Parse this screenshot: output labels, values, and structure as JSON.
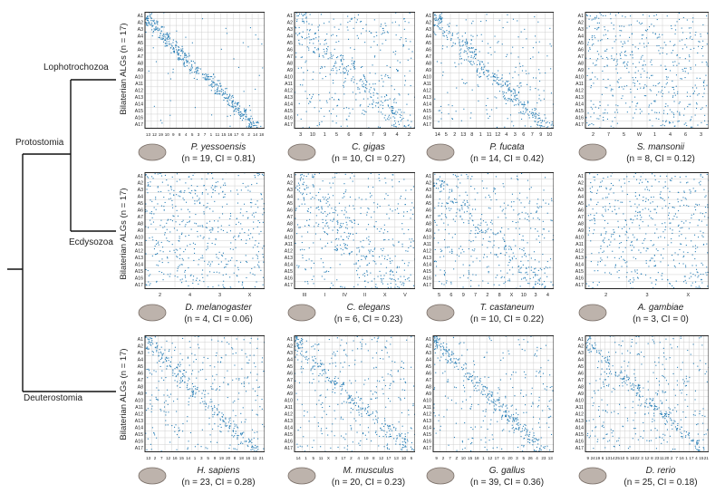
{
  "figure": {
    "clade_labels": {
      "lophotrochozoa": "Lophotrochozoa",
      "protostomia": "Protostomia",
      "ecdysozoa": "Ecdysozoa",
      "deuterostomia": "Deuterostomia"
    },
    "row_axis_label": "Bilaterian ALGs (n = 17)",
    "alg_labels": [
      "A1",
      "A2",
      "A3",
      "A4",
      "A5",
      "A6",
      "A7",
      "A8",
      "A9",
      "A10",
      "A11",
      "A12",
      "A13",
      "A14",
      "A15",
      "A16",
      "A17"
    ],
    "colors": {
      "dot": "#2a7fb6",
      "box": "#222222",
      "grid": "#d0d0d0",
      "silhouette": "#bdb3ac"
    },
    "panels": [
      {
        "species": "P. yessoensis",
        "stat": "(n = 19, CI = 0.81)",
        "icon": "scallop-icon",
        "clade": "Lophotrochozoa",
        "chromosome_ticks": [
          "13",
          "12",
          "19",
          "10",
          "9",
          "8",
          "4",
          "5",
          "3",
          "7",
          "1",
          "11",
          "15",
          "16",
          "17",
          "6",
          "2",
          "14",
          "18"
        ]
      },
      {
        "species": "C. gigas",
        "stat": "(n = 10, CI = 0.27)",
        "icon": "oyster-icon",
        "clade": "Lophotrochozoa",
        "chromosome_ticks": [
          "3",
          "10",
          "1",
          "5",
          "6",
          "8",
          "7",
          "9",
          "4",
          "2"
        ]
      },
      {
        "species": "P. fucata",
        "stat": "(n = 14, CI = 0.42)",
        "icon": "pearl-oyster-icon",
        "clade": "Lophotrochozoa",
        "chromosome_ticks": [
          "14",
          "5",
          "2",
          "13",
          "8",
          "1",
          "11",
          "12",
          "4",
          "3",
          "6",
          "7",
          "9",
          "10"
        ]
      },
      {
        "species": "S. mansonii",
        "stat": "(n = 8, CI = 0.12)",
        "icon": "flatworm-icon",
        "clade": "Lophotrochozoa",
        "chromosome_ticks": [
          "2",
          "7",
          "5",
          "W",
          "1",
          "4",
          "6",
          "3"
        ]
      },
      {
        "species": "D. melanogaster",
        "stat": "(n = 4, CI = 0.06)",
        "icon": "fly-icon",
        "clade": "Ecdysozoa",
        "chromosome_ticks": [
          "2",
          "4",
          "3",
          "X"
        ]
      },
      {
        "species": "C. elegans",
        "stat": "(n = 6, CI = 0.23)",
        "icon": "nematode-icon",
        "clade": "Ecdysozoa",
        "chromosome_ticks": [
          "III",
          "I",
          "IV",
          "II",
          "X",
          "V"
        ]
      },
      {
        "species": "T. castaneum",
        "stat": "(n = 10, CI = 0.22)",
        "icon": "beetle-icon",
        "clade": "Ecdysozoa",
        "chromosome_ticks": [
          "5",
          "6",
          "9",
          "7",
          "2",
          "8",
          "X",
          "10",
          "3",
          "4"
        ]
      },
      {
        "species": "A. gambiae",
        "stat": "(n = 3, CI = 0)",
        "icon": "mosquito-icon",
        "clade": "Ecdysozoa",
        "chromosome_ticks": [
          "2",
          "3",
          "X"
        ]
      },
      {
        "species": "H. sapiens",
        "stat": "(n = 23, CI = 0.28)",
        "icon": "human-icon",
        "clade": "Deuterostomia",
        "chromosome_ticks": [
          "13",
          "2",
          "7",
          "12",
          "16",
          "15",
          "14",
          "1",
          "3",
          "5",
          "9",
          "19",
          "20",
          "8",
          "18",
          "16",
          "11",
          "21"
        ]
      },
      {
        "species": "M. musculus",
        "stat": "(n = 20, CI = 0.23)",
        "icon": "mouse-icon",
        "clade": "Deuterostomia",
        "chromosome_ticks": [
          "14",
          "1",
          "5",
          "11",
          "X",
          "3",
          "17",
          "2",
          "4",
          "19",
          "8",
          "12",
          "17",
          "13",
          "10",
          "6"
        ]
      },
      {
        "species": "G. gallus",
        "stat": "(n = 39, CI = 0.36)",
        "icon": "chicken-icon",
        "clade": "Deuterostomia",
        "chromosome_ticks": [
          "9",
          "2",
          "7",
          "Z",
          "10",
          "15",
          "18",
          "1",
          "12",
          "17",
          "6",
          "20",
          "3",
          "5",
          "26",
          "4",
          "23",
          "13"
        ]
      },
      {
        "species": "D. rerio",
        "stat": "(n = 25, CI = 0.18)",
        "icon": "zebrafish-icon",
        "clade": "Deuterostomia",
        "chromosome_ticks": [
          "9",
          "24",
          "19",
          "6",
          "13",
          "14",
          "25",
          "10",
          "5",
          "18",
          "22",
          "3",
          "12",
          "8",
          "23",
          "11",
          "20",
          "2",
          "7",
          "16",
          "1",
          "17",
          "4",
          "15",
          "21"
        ]
      }
    ]
  }
}
